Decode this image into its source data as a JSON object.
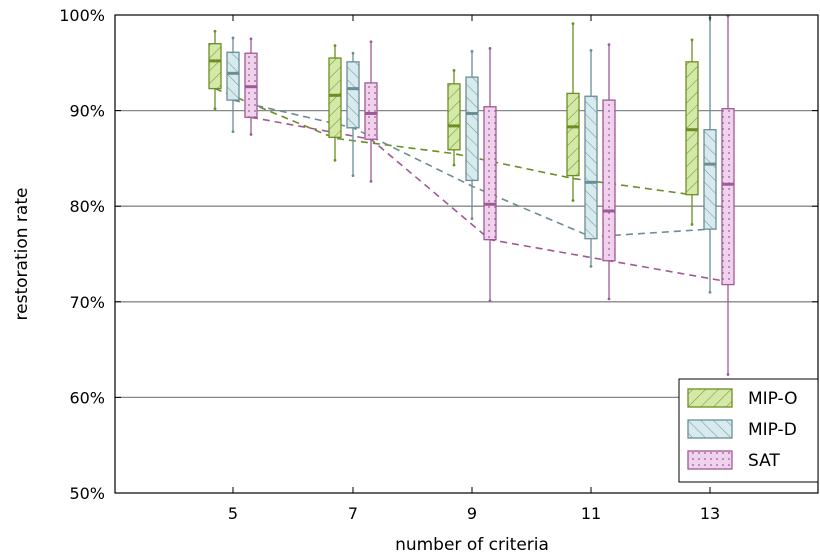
{
  "chart_data": {
    "type": "box",
    "xlabel": "number of criteria",
    "ylabel": "restoration rate",
    "categories": [
      5,
      7,
      9,
      11,
      13
    ],
    "ylim": [
      50,
      100
    ],
    "yticks": [
      50,
      60,
      70,
      80,
      90,
      100
    ],
    "ytick_suffix": "%",
    "grid": "horizontal",
    "legend_position": "bottom-right",
    "series": [
      {
        "name": "MIP-O",
        "color": "#6b8e23",
        "fill": "#d4e8a8",
        "hatch": "diagonal",
        "mean_line": "dashed",
        "boxes": [
          {
            "x": 5,
            "whisker_low": 90.2,
            "q1": 92.3,
            "median": 95.2,
            "q3": 97.0,
            "whisker_high": 98.3
          },
          {
            "x": 7,
            "whisker_low": 84.8,
            "q1": 87.2,
            "median": 91.6,
            "q3": 95.5,
            "whisker_high": 96.8
          },
          {
            "x": 9,
            "whisker_low": 84.3,
            "q1": 85.9,
            "median": 88.4,
            "q3": 92.8,
            "whisker_high": 94.2
          },
          {
            "x": 11,
            "whisker_low": 80.6,
            "q1": 83.2,
            "median": 88.3,
            "q3": 91.8,
            "whisker_high": 99.1
          },
          {
            "x": 13,
            "whisker_low": 78.1,
            "q1": 81.2,
            "median": 88.0,
            "q3": 95.1,
            "whisker_high": 97.4
          }
        ],
        "means": [
          92.3,
          87.1,
          85.5,
          82.9,
          81.2
        ]
      },
      {
        "name": "MIP-D",
        "color": "#6a8e96",
        "fill": "#d7ebef",
        "hatch": "backslash",
        "mean_line": "dashed",
        "boxes": [
          {
            "x": 5,
            "whisker_low": 87.8,
            "q1": 91.1,
            "median": 93.9,
            "q3": 96.1,
            "whisker_high": 97.6
          },
          {
            "x": 7,
            "whisker_low": 83.2,
            "q1": 88.2,
            "median": 92.3,
            "q3": 95.1,
            "whisker_high": 96.0
          },
          {
            "x": 9,
            "whisker_low": 78.7,
            "q1": 82.7,
            "median": 89.7,
            "q3": 93.5,
            "whisker_high": 96.2
          },
          {
            "x": 11,
            "whisker_low": 73.7,
            "q1": 76.6,
            "median": 82.5,
            "q3": 91.5,
            "whisker_high": 96.3
          },
          {
            "x": 13,
            "whisker_low": 71.0,
            "q1": 77.6,
            "median": 84.4,
            "q3": 88.0,
            "whisker_high": 99.7
          }
        ],
        "means": [
          91.1,
          88.2,
          82.1,
          76.8,
          77.6
        ]
      },
      {
        "name": "SAT",
        "color": "#9e5a96",
        "fill": "#f0d2ec",
        "hatch": "dots",
        "mean_line": "dashed",
        "boxes": [
          {
            "x": 5,
            "whisker_low": 87.5,
            "q1": 89.3,
            "median": 92.5,
            "q3": 96.0,
            "whisker_high": 97.5
          },
          {
            "x": 7,
            "whisker_low": 82.6,
            "q1": 87.0,
            "median": 89.7,
            "q3": 92.9,
            "whisker_high": 97.2
          },
          {
            "x": 9,
            "whisker_low": 70.1,
            "q1": 76.5,
            "median": 80.2,
            "q3": 90.4,
            "whisker_high": 96.5
          },
          {
            "x": 11,
            "whisker_low": 70.3,
            "q1": 74.3,
            "median": 79.5,
            "q3": 91.1,
            "whisker_high": 96.9
          },
          {
            "x": 13,
            "whisker_low": 62.4,
            "q1": 71.8,
            "median": 82.3,
            "q3": 90.2,
            "whisker_high": 99.9
          }
        ],
        "means": [
          89.3,
          87.0,
          76.5,
          74.3,
          72.1
        ]
      }
    ]
  }
}
